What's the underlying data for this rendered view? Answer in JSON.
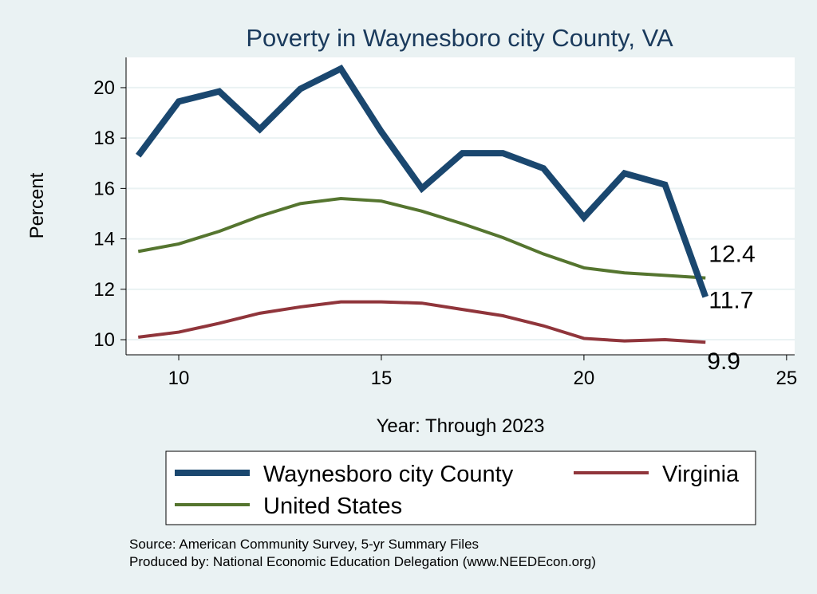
{
  "chart_data": {
    "type": "line",
    "title": "Poverty in Waynesboro city County, VA",
    "xlabel": "Year: Through 2023",
    "ylabel": "Percent",
    "xlim": [
      8.7,
      25.2
    ],
    "ylim": [
      9.4,
      21.2
    ],
    "x_ticks": [
      10,
      15,
      20,
      25
    ],
    "y_ticks": [
      10,
      12,
      14,
      16,
      18,
      20
    ],
    "grid": true,
    "x": [
      9,
      10,
      11,
      12,
      13,
      14,
      15,
      16,
      17,
      18,
      19,
      20,
      21,
      22,
      23
    ],
    "series": [
      {
        "name": "Waynesboro city County",
        "color": "#1a476f",
        "values": [
          17.3,
          19.45,
          19.85,
          18.35,
          19.95,
          20.75,
          18.25,
          16.0,
          17.4,
          17.4,
          16.8,
          14.85,
          16.6,
          16.15,
          11.7
        ],
        "end_label": "11.7"
      },
      {
        "name": "Virginia",
        "color": "#90353b",
        "values": [
          10.1,
          10.3,
          10.65,
          11.05,
          11.3,
          11.5,
          11.5,
          11.45,
          11.2,
          10.95,
          10.55,
          10.05,
          9.95,
          10.0,
          9.9
        ],
        "end_label": "9.9"
      },
      {
        "name": "United States",
        "color": "#55752f",
        "values": [
          13.5,
          13.8,
          14.3,
          14.9,
          15.4,
          15.6,
          15.5,
          15.1,
          14.6,
          14.05,
          13.4,
          12.85,
          12.65,
          12.55,
          12.45
        ],
        "end_label": "12.4"
      }
    ],
    "legend": [
      "Waynesboro city County",
      "Virginia",
      "United States"
    ],
    "legend_position": "bottom"
  },
  "source_line": "Source: American Community Survey, 5-yr Summary Files",
  "produced_line": "Produced by: National Economic Education Delegation (www.NEEDEcon.org)"
}
